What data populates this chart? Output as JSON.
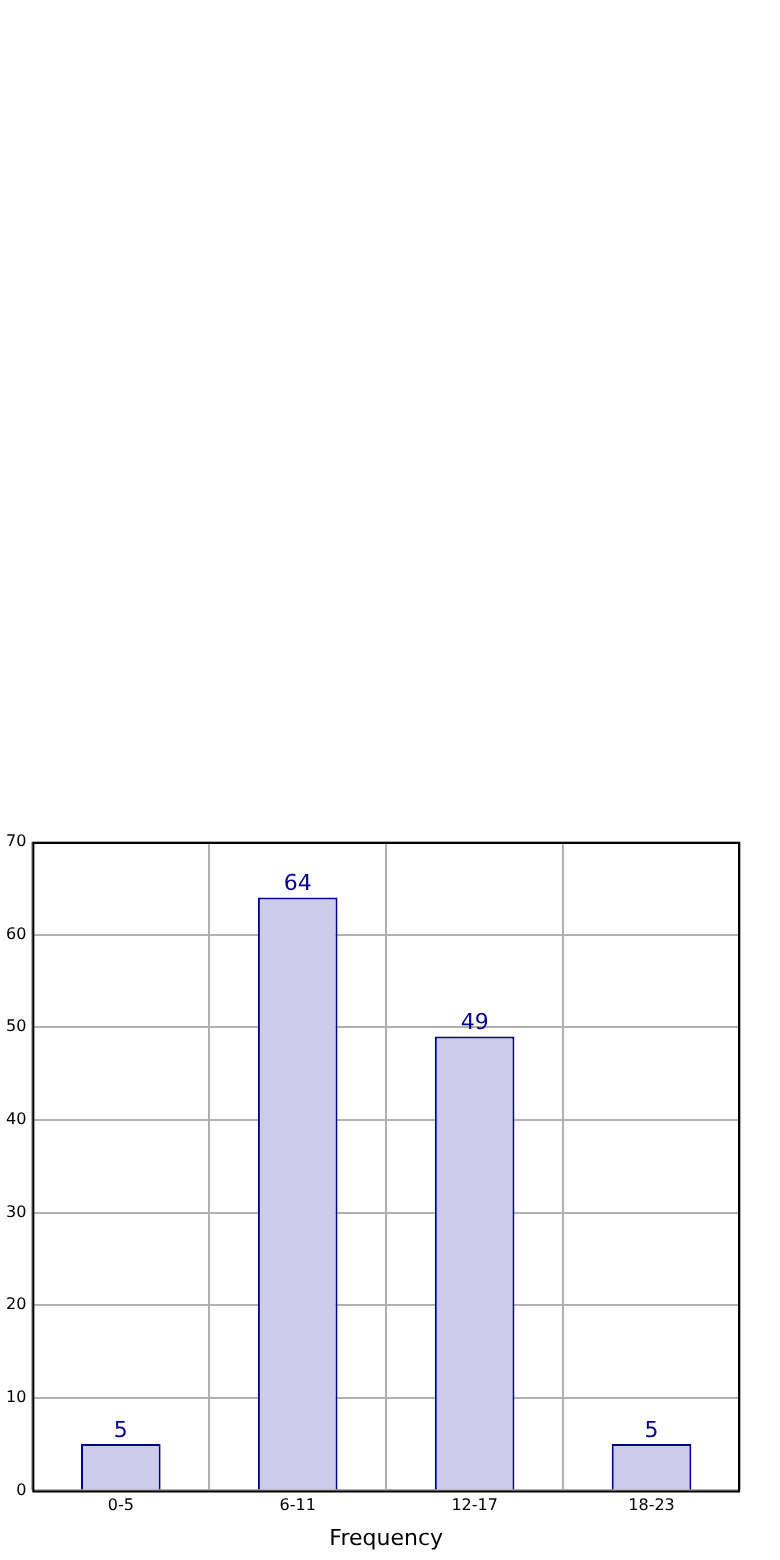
{
  "chart_data": {
    "type": "bar",
    "xlabel": "Frequency",
    "categories": [
      "0-5",
      "6-11",
      "12-17",
      "18-23"
    ],
    "values": [
      5,
      64,
      49,
      5
    ],
    "color": "#ccccea",
    "ylim": [
      0,
      70
    ],
    "yticks": [
      0,
      10,
      20,
      30,
      40,
      50,
      60,
      70
    ],
    "grid": true,
    "data_labels": true
  }
}
